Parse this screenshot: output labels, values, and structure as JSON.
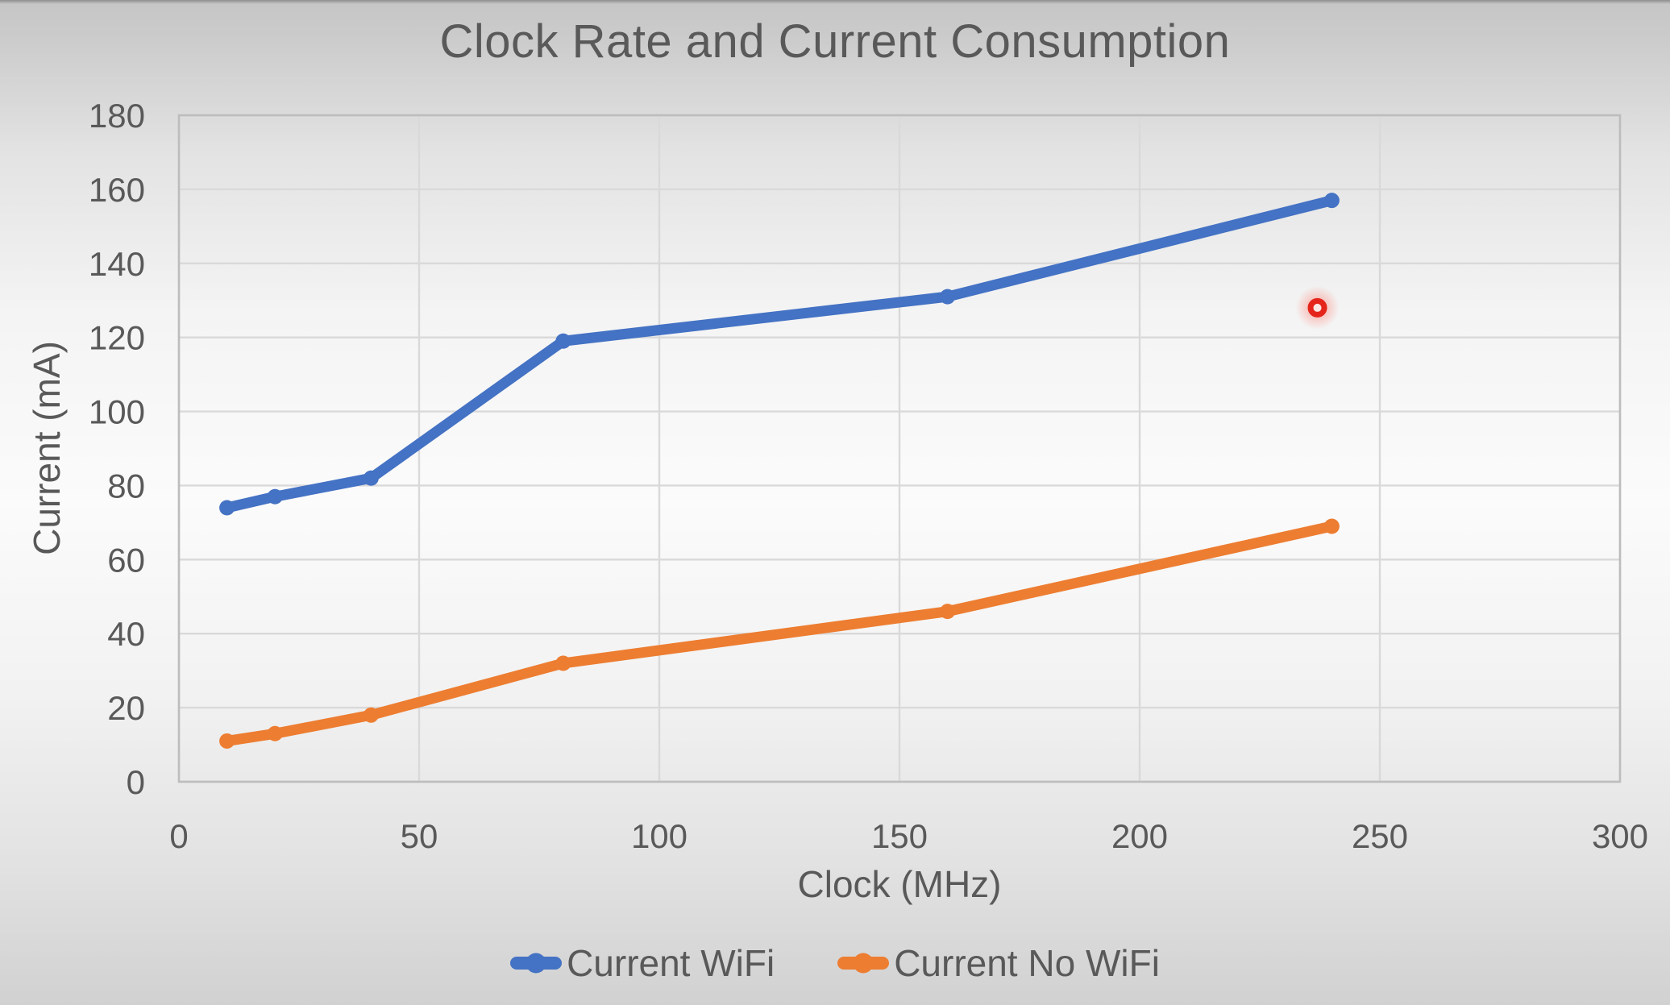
{
  "chart_data": {
    "type": "line",
    "title": "Clock Rate and Current Consumption",
    "xlabel": "Clock (MHz)",
    "ylabel": "Current (mA)",
    "xlim": [
      0,
      300
    ],
    "ylim": [
      0,
      180
    ],
    "x_ticks": [
      0,
      50,
      100,
      150,
      200,
      250,
      300
    ],
    "y_ticks": [
      0,
      20,
      40,
      60,
      80,
      100,
      120,
      140,
      160,
      180
    ],
    "grid": true,
    "legend_position": "bottom",
    "x": [
      10,
      20,
      40,
      80,
      160,
      240
    ],
    "series": [
      {
        "name": "Current WiFi",
        "color": "#4472C4",
        "values": [
          74,
          77,
          82,
          119,
          131,
          157
        ]
      },
      {
        "name": "Current No WiFi",
        "color": "#ED7D31",
        "values": [
          11,
          13,
          18,
          32,
          46,
          69
        ]
      }
    ],
    "annotations": [
      {
        "type": "laser-pointer-dot",
        "x": 237,
        "y": 128,
        "color": "#E5251B"
      }
    ]
  },
  "colors": {
    "text": "#595959",
    "gridline": "#D9D9D9",
    "plot_border": "#BDBDBD"
  }
}
